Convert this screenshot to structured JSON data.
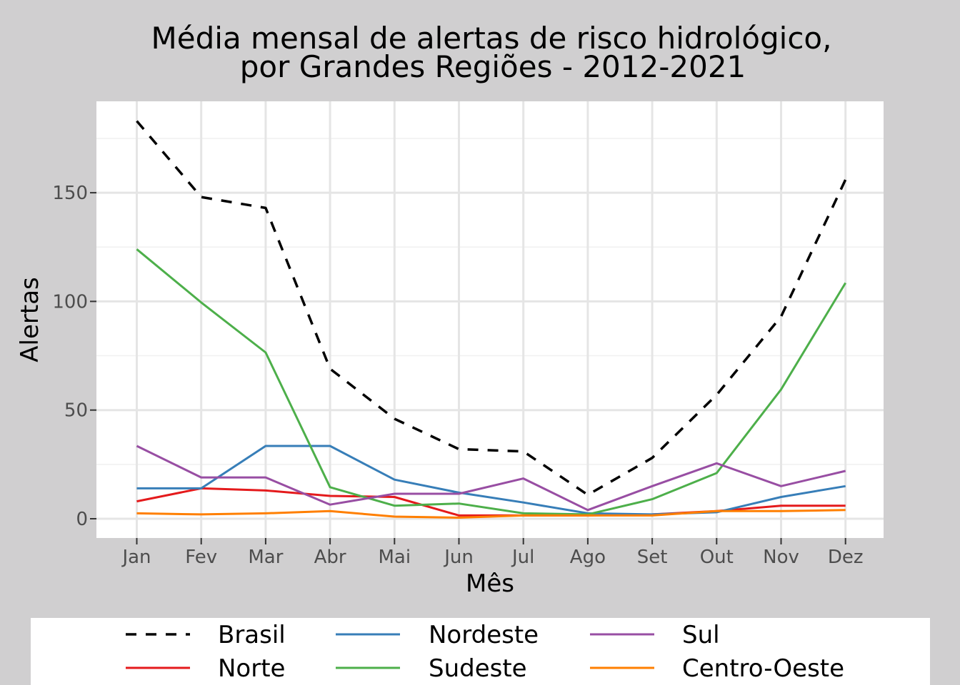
{
  "chart_data": {
    "type": "line",
    "title": "Média mensal de alertas de risco hidrológico,",
    "subtitle": "por Grandes Regiões - 2012-2021",
    "xlabel": "Mês",
    "ylabel": "Alertas",
    "categories": [
      "Jan",
      "Fev",
      "Mar",
      "Abr",
      "Mai",
      "Jun",
      "Jul",
      "Ago",
      "Set",
      "Out",
      "Nov",
      "Dez"
    ],
    "ylim": [
      -9,
      192
    ],
    "yticks": [
      0,
      50,
      100,
      150
    ],
    "grid": true,
    "legend_position": "bottom",
    "series": [
      {
        "name": "Brasil",
        "color": "#000000",
        "dashed": true,
        "values": [
          183,
          148,
          143,
          69,
          46,
          32,
          31,
          11,
          28,
          57,
          93,
          156
        ]
      },
      {
        "name": "Norte",
        "color": "#e41a1c",
        "dashed": false,
        "values": [
          8,
          14,
          13,
          10.5,
          10,
          1.5,
          1.5,
          1.5,
          2,
          3.5,
          6,
          6
        ]
      },
      {
        "name": "Nordeste",
        "color": "#377eb8",
        "dashed": false,
        "values": [
          14,
          14,
          33.5,
          33.5,
          18,
          12,
          7.5,
          2.5,
          2,
          3,
          10,
          15
        ]
      },
      {
        "name": "Sudeste",
        "color": "#4daf4a",
        "dashed": false,
        "values": [
          124,
          99.5,
          76.5,
          14.5,
          6,
          7,
          2.5,
          2,
          9,
          21,
          59.5,
          108.5
        ]
      },
      {
        "name": "Sul",
        "color": "#984ea3",
        "dashed": false,
        "values": [
          33.5,
          19,
          19,
          6.5,
          11.5,
          11.5,
          18.5,
          4,
          15,
          25.5,
          15,
          22
        ]
      },
      {
        "name": "Centro-Oeste",
        "color": "#ff7f00",
        "dashed": false,
        "values": [
          2.5,
          2,
          2.5,
          3.5,
          1,
          0.5,
          1.5,
          1.5,
          1.5,
          3.5,
          3.5,
          4
        ]
      }
    ]
  }
}
